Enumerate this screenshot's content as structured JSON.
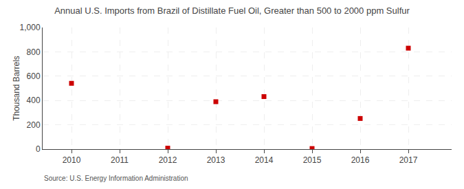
{
  "chart_data": {
    "type": "scatter",
    "title": "Annual U.S. Imports from Brazil of Distillate Fuel Oil, Greater than 500 to 2000 ppm Sulfur",
    "ylabel": "Thousand Barrels",
    "annotations": [
      "Source: U.S. Energy Information Administration"
    ],
    "x": [
      2010,
      2012,
      2013,
      2014,
      2015,
      2016,
      2017
    ],
    "values": [
      541,
      8,
      390,
      432,
      5,
      252,
      830
    ],
    "color": "#cc0000",
    "marker": "square",
    "xlim": [
      2009.4,
      2017.9
    ],
    "xticks": [
      2010,
      2011,
      2012,
      2013,
      2014,
      2015,
      2016,
      2017
    ],
    "ylim": [
      0,
      1000
    ],
    "yticks": [
      0,
      200,
      400,
      600,
      800,
      {
        "value": 1000,
        "label": "1,000"
      }
    ],
    "grid": true
  }
}
